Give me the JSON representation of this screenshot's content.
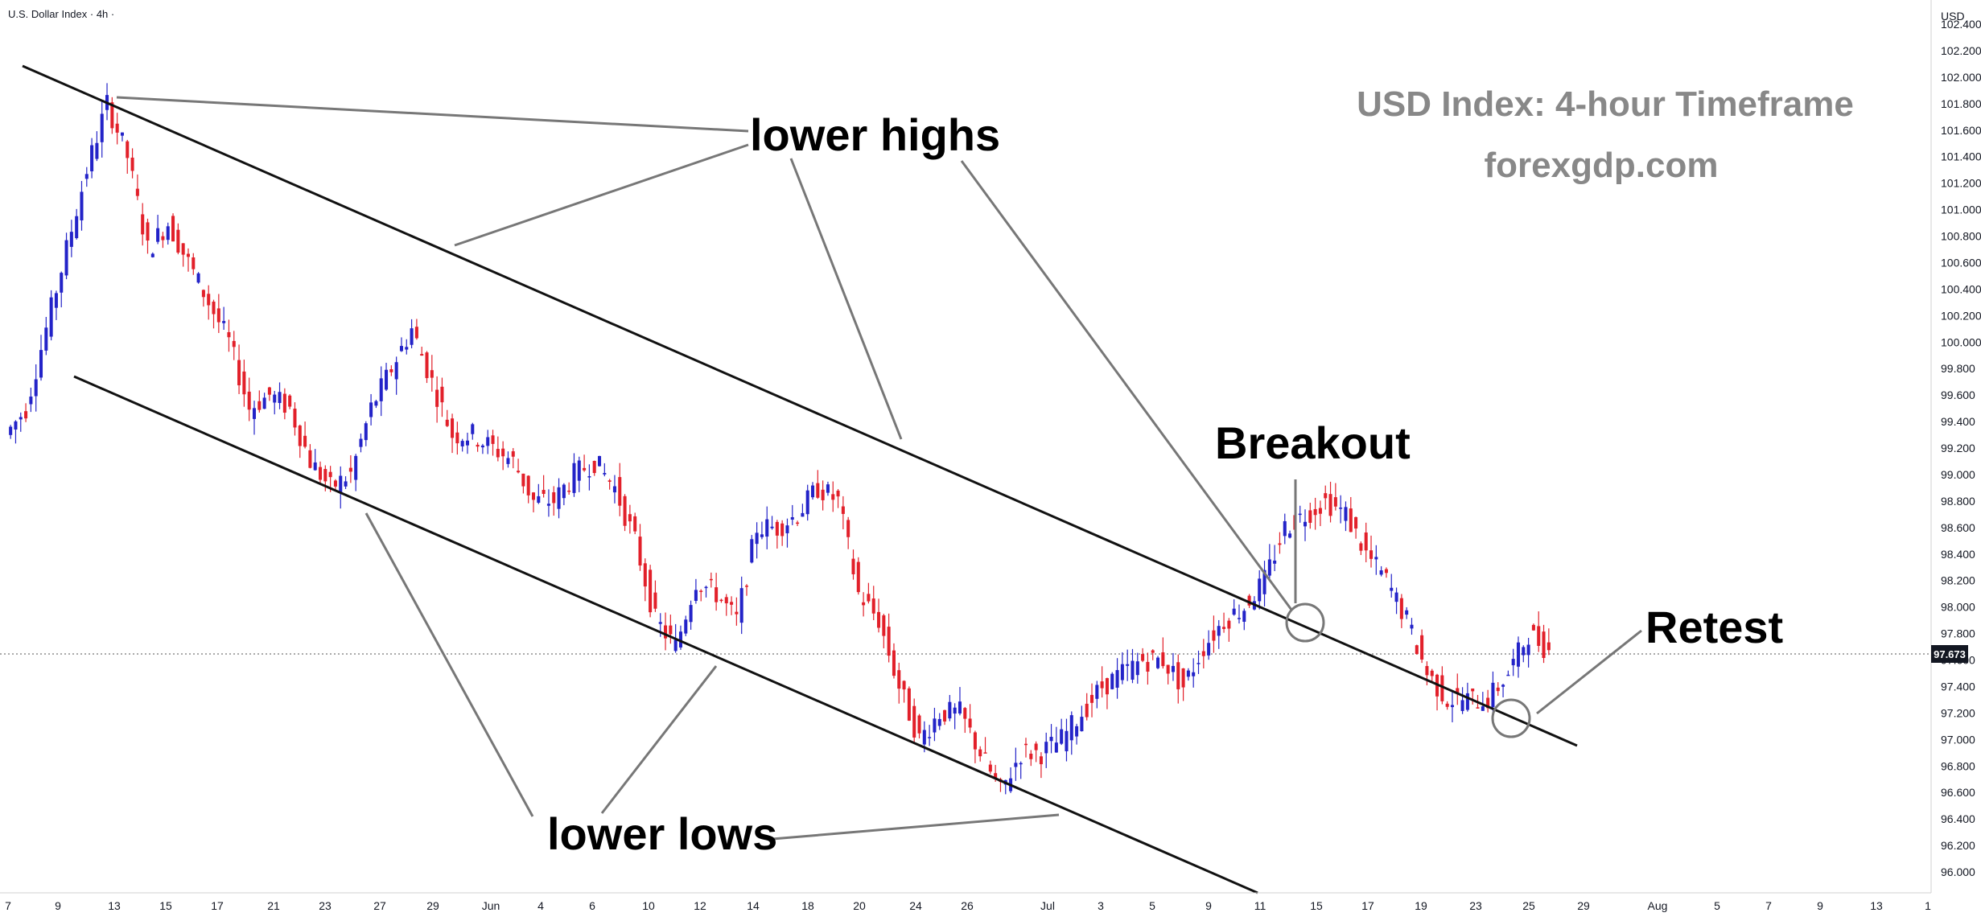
{
  "header": {
    "symbol": "U.S. Dollar Index · 4h ·"
  },
  "price_axis": {
    "currency": "USD",
    "current_price": "97.673"
  },
  "watermark": {
    "title": "USD Index: 4-hour Timeframe",
    "site": "forexgdp.com"
  },
  "annotations": {
    "lower_highs": "lower highs",
    "lower_lows": "lower lows",
    "breakout": "Breakout",
    "retest": "Retest"
  },
  "chart_data": {
    "type": "candlestick",
    "title": "USD Index: 4-hour Timeframe",
    "xlabel": "",
    "ylabel": "USD",
    "ylim": [
      95.8,
      102.6
    ],
    "grid": false,
    "y_ticks": [
      "102.400",
      "102.200",
      "102.000",
      "101.800",
      "101.600",
      "101.400",
      "101.200",
      "101.000",
      "100.800",
      "100.600",
      "100.400",
      "100.200",
      "100.000",
      "99.800",
      "99.600",
      "99.400",
      "99.200",
      "99.000",
      "98.800",
      "98.600",
      "98.400",
      "98.200",
      "98.000",
      "97.800",
      "97.600",
      "97.400",
      "97.200",
      "97.000",
      "96.800",
      "96.600",
      "96.400",
      "96.200",
      "96.000"
    ],
    "x_ticks": [
      "7",
      "9",
      "13",
      "15",
      "17",
      "21",
      "23",
      "27",
      "29",
      "Jun",
      "4",
      "6",
      "10",
      "12",
      "14",
      "18",
      "20",
      "24",
      "26",
      "Jul",
      "3",
      "5",
      "9",
      "11",
      "15",
      "17",
      "19",
      "23",
      "25",
      "29",
      "Aug",
      "5",
      "7",
      "9",
      "13",
      "1"
    ],
    "x_range": [
      0,
      91
    ],
    "x_tick_positions": [
      0,
      3,
      6,
      9,
      12,
      15,
      18,
      21,
      24,
      27,
      30,
      33,
      36,
      39,
      42,
      45,
      48,
      51,
      54,
      57,
      60,
      63,
      66,
      69,
      72,
      75,
      78,
      81,
      84,
      87,
      90,
      93,
      96,
      99,
      102,
      105
    ],
    "last_price": 97.673,
    "up_color": "#2323c8",
    "down_color": "#e2202a",
    "candles_approx": {
      "open": [
        99.3,
        99.5,
        100.1,
        100.7,
        101.3,
        101.8,
        101.4,
        100.7,
        100.9,
        100.6,
        100.3,
        100.0,
        99.5,
        99.6,
        99.5,
        99.1,
        98.9,
        99.0,
        99.5,
        99.8,
        100.1,
        99.7,
        99.3,
        99.3,
        99.2,
        99.1,
        98.8,
        98.8,
        99.0,
        99.1,
        98.9,
        98.5,
        97.9,
        97.7,
        98.2,
        98.1,
        97.9,
        98.6,
        98.6,
        98.7,
        98.9,
        98.8,
        98.1,
        97.9,
        97.4,
        97.0,
        97.2,
        97.2,
        96.9,
        96.6,
        96.9,
        96.9,
        97.0,
        97.2,
        97.4,
        97.5,
        97.6,
        97.6,
        97.4,
        97.7,
        97.9,
        98.0,
        98.2,
        98.6,
        98.7,
        98.8,
        98.7,
        98.4,
        98.2,
        97.9,
        97.5,
        97.3,
        97.3,
        97.3,
        97.5,
        97.8
      ],
      "close": [
        99.5,
        100.1,
        100.7,
        101.3,
        101.8,
        101.4,
        100.7,
        100.9,
        100.6,
        100.3,
        100.0,
        99.5,
        99.6,
        99.5,
        99.1,
        98.9,
        99.0,
        99.5,
        99.8,
        100.1,
        99.7,
        99.3,
        99.3,
        99.2,
        99.1,
        98.8,
        98.8,
        99.0,
        99.1,
        98.9,
        98.5,
        97.9,
        97.7,
        98.2,
        98.1,
        97.9,
        98.6,
        98.6,
        98.7,
        98.9,
        98.8,
        98.1,
        97.9,
        97.4,
        97.0,
        97.2,
        97.2,
        96.9,
        96.6,
        96.9,
        96.9,
        97.0,
        97.2,
        97.4,
        97.5,
        97.6,
        97.6,
        97.4,
        97.7,
        97.9,
        98.0,
        98.2,
        98.6,
        98.7,
        98.8,
        98.7,
        98.4,
        98.2,
        97.9,
        97.5,
        97.3,
        97.3,
        97.3,
        97.5,
        97.8,
        97.673
      ]
    },
    "trendlines": [
      {
        "name": "upper channel",
        "from": [
          0.5,
          102.25
        ],
        "to": [
          81.5,
          97.1
        ]
      },
      {
        "name": "lower channel",
        "from": [
          3.5,
          99.8
        ],
        "to": [
          65,
          95.8
        ]
      }
    ]
  }
}
